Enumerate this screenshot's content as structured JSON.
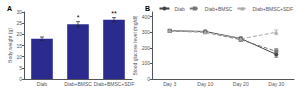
{
  "chart_data": [
    {
      "type": "bar",
      "title": "A",
      "categories": [
        "Diab",
        "Diab+BMSC",
        "Diab+BMSC+SDF"
      ],
      "values": [
        18.0,
        24.5,
        26.5
      ],
      "errors": [
        0.8,
        1.2,
        1.0
      ],
      "color": "#2b2b8f",
      "ylabel": "Body weight (g)",
      "ylim": [
        0,
        30
      ],
      "yticks": [
        0,
        5,
        10,
        15,
        20,
        25,
        30
      ],
      "annotations": [
        null,
        "*",
        "**"
      ],
      "grid": false
    },
    {
      "type": "line",
      "title": "B",
      "categories": [
        "Day 3",
        "Day 10",
        "Day 20",
        "Day 30"
      ],
      "series": [
        {
          "name": "Diab",
          "color": "#444444",
          "values": [
            310,
            305,
            260,
            158
          ],
          "errors": [
            8,
            8,
            10,
            18
          ],
          "line_style": "solid",
          "marker": "circle"
        },
        {
          "name": "Diab+BMSC",
          "color": "#777777",
          "values": [
            308,
            300,
            252,
            178
          ],
          "errors": [
            8,
            8,
            10,
            18
          ],
          "line_style": "dashed",
          "marker": "square"
        },
        {
          "name": "Diab+BMSC+SDF",
          "color": "#aaaaaa",
          "values": [
            312,
            302,
            258,
            300
          ],
          "errors": [
            8,
            8,
            10,
            15
          ],
          "line_style": "dashed",
          "marker": "triangle"
        }
      ],
      "ylabel": "Blood glucose level (mg/dl)",
      "ylim": [
        0,
        430
      ],
      "yticks": [
        0,
        100,
        200,
        300,
        400
      ],
      "legend": "upper right",
      "grid": false
    }
  ]
}
